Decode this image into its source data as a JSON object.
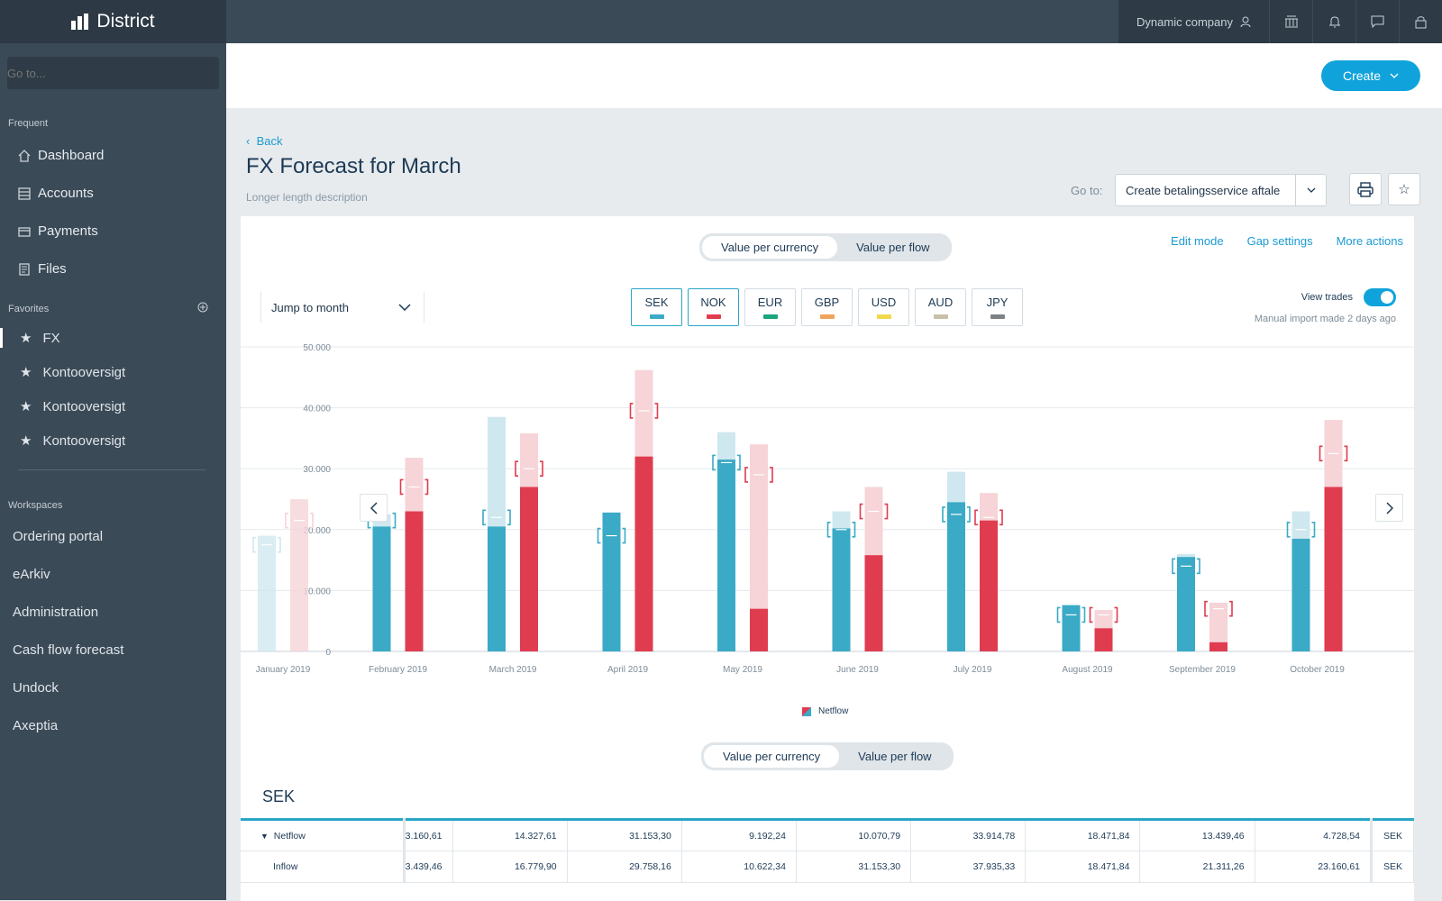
{
  "app": {
    "name": "District",
    "goto_placeholder": "Go to...",
    "company": "Dynamic company"
  },
  "sidebar": {
    "frequent_title": "Frequent",
    "frequent": [
      {
        "label": "Dashboard",
        "icon": "home-icon"
      },
      {
        "label": "Accounts",
        "icon": "accounts-icon"
      },
      {
        "label": "Payments",
        "icon": "payments-icon"
      },
      {
        "label": "Files",
        "icon": "files-icon"
      }
    ],
    "favorites_title": "Favorites",
    "favorites": [
      "FX",
      "Kontooversigt",
      "Kontooversigt",
      "Kontooversigt"
    ],
    "workspaces_title": "Workspaces",
    "workspaces": [
      "Ordering portal",
      "eArkiv",
      "Administration",
      "Cash flow forecast",
      "Undock",
      "Axeptia"
    ]
  },
  "header": {
    "create_label": "Create"
  },
  "page": {
    "back_label": "Back",
    "title": "FX Forecast for March",
    "description": "Longer length description",
    "goto_label": "Go to:",
    "goto_value": "Create betalingsservice aftale"
  },
  "card": {
    "toggle": {
      "a": "Value per currency",
      "b": "Value per flow"
    },
    "links": [
      "Edit mode",
      "Gap settings",
      "More actions"
    ],
    "jump_label": "Jump to month",
    "currencies": [
      {
        "code": "SEK",
        "color": "#3aaac6"
      },
      {
        "code": "NOK",
        "color": "#e03c4f"
      },
      {
        "code": "EUR",
        "color": "#1aa57e"
      },
      {
        "code": "GBP",
        "color": "#f0a45a"
      },
      {
        "code": "USD",
        "color": "#f0d84c"
      },
      {
        "code": "AUD",
        "color": "#c8c0a8"
      },
      {
        "code": "JPY",
        "color": "#7d8286"
      }
    ],
    "view_trades": "View trades",
    "import_note": "Manual import made 2 days ago",
    "legend": "Netflow",
    "table_title": "SEK"
  },
  "chart_data": {
    "type": "bar",
    "title": "",
    "ylim": [
      0,
      50000
    ],
    "y_ticks": [
      "50.000",
      "40.000",
      "30.000",
      "20.000",
      "10.000",
      "0"
    ],
    "categories": [
      "January 2019",
      "February 2019",
      "March 2019",
      "April 2019",
      "May 2019",
      "June 2019",
      "July 2019",
      "August 2019",
      "September 2019",
      "October 2019"
    ],
    "series": [
      {
        "name": "SEK",
        "solid": [
          0,
          20500,
          20500,
          22800,
          31500,
          20200,
          24500,
          7600,
          15500,
          18500
        ],
        "total": [
          19000,
          22500,
          38500,
          22800,
          36000,
          23000,
          29500,
          7600,
          16000,
          23000
        ],
        "trade": [
          17500,
          21500,
          22000,
          19000,
          31000,
          20000,
          22500,
          6000,
          14000,
          20000
        ]
      },
      {
        "name": "NOK",
        "solid": [
          0,
          23000,
          27000,
          32000,
          7000,
          15800,
          21500,
          3800,
          1500,
          27000
        ],
        "total": [
          25000,
          31800,
          35800,
          46200,
          34000,
          27000,
          26000,
          6800,
          8000,
          38000
        ],
        "trade": [
          21500,
          27000,
          30000,
          39500,
          29000,
          23000,
          22000,
          6000,
          7000,
          32500
        ]
      }
    ]
  },
  "table": {
    "toggle": {
      "a": "Value per currency",
      "b": "Value per flow"
    },
    "rows": [
      {
        "label": "Netflow",
        "values": [
          "3.160,61",
          "14.327,61",
          "31.153,30",
          "9.192,24",
          "10.070,79",
          "33.914,78",
          "18.471,84",
          "13.439,46",
          "4.728,54"
        ],
        "cur": "SEK"
      },
      {
        "label": "Inflow",
        "values": [
          "3.439,46",
          "16.779,90",
          "29.758,16",
          "10.622,34",
          "31.153,30",
          "37.935,33",
          "18.471,84",
          "21.311,26",
          "23.160,61"
        ],
        "cur": "SEK"
      }
    ]
  }
}
